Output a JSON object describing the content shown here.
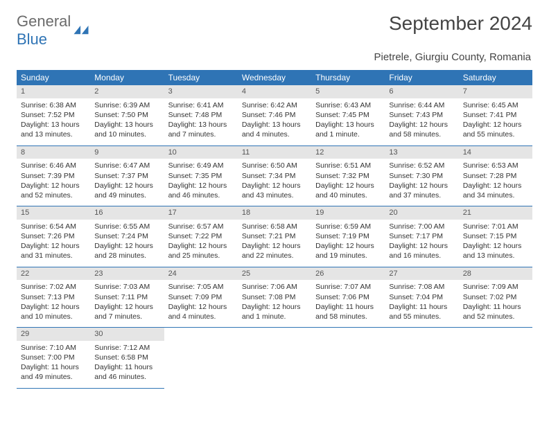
{
  "brand": {
    "word1": "General",
    "word2": "Blue"
  },
  "title": "September 2024",
  "location": "Pietrele, Giurgiu County, Romania",
  "colors": {
    "header_bg": "#2f74b5",
    "header_text": "#ffffff",
    "daynum_bg": "#e5e5e5",
    "row_border": "#2f74b5",
    "body_text": "#333333",
    "logo_gray": "#6b6b6b",
    "logo_blue": "#2f74b5"
  },
  "day_labels": [
    "Sunday",
    "Monday",
    "Tuesday",
    "Wednesday",
    "Thursday",
    "Friday",
    "Saturday"
  ],
  "days": [
    {
      "n": "1",
      "sr": "6:38 AM",
      "ss": "7:52 PM",
      "dl": "13 hours and 13 minutes."
    },
    {
      "n": "2",
      "sr": "6:39 AM",
      "ss": "7:50 PM",
      "dl": "13 hours and 10 minutes."
    },
    {
      "n": "3",
      "sr": "6:41 AM",
      "ss": "7:48 PM",
      "dl": "13 hours and 7 minutes."
    },
    {
      "n": "4",
      "sr": "6:42 AM",
      "ss": "7:46 PM",
      "dl": "13 hours and 4 minutes."
    },
    {
      "n": "5",
      "sr": "6:43 AM",
      "ss": "7:45 PM",
      "dl": "13 hours and 1 minute."
    },
    {
      "n": "6",
      "sr": "6:44 AM",
      "ss": "7:43 PM",
      "dl": "12 hours and 58 minutes."
    },
    {
      "n": "7",
      "sr": "6:45 AM",
      "ss": "7:41 PM",
      "dl": "12 hours and 55 minutes."
    },
    {
      "n": "8",
      "sr": "6:46 AM",
      "ss": "7:39 PM",
      "dl": "12 hours and 52 minutes."
    },
    {
      "n": "9",
      "sr": "6:47 AM",
      "ss": "7:37 PM",
      "dl": "12 hours and 49 minutes."
    },
    {
      "n": "10",
      "sr": "6:49 AM",
      "ss": "7:35 PM",
      "dl": "12 hours and 46 minutes."
    },
    {
      "n": "11",
      "sr": "6:50 AM",
      "ss": "7:34 PM",
      "dl": "12 hours and 43 minutes."
    },
    {
      "n": "12",
      "sr": "6:51 AM",
      "ss": "7:32 PM",
      "dl": "12 hours and 40 minutes."
    },
    {
      "n": "13",
      "sr": "6:52 AM",
      "ss": "7:30 PM",
      "dl": "12 hours and 37 minutes."
    },
    {
      "n": "14",
      "sr": "6:53 AM",
      "ss": "7:28 PM",
      "dl": "12 hours and 34 minutes."
    },
    {
      "n": "15",
      "sr": "6:54 AM",
      "ss": "7:26 PM",
      "dl": "12 hours and 31 minutes."
    },
    {
      "n": "16",
      "sr": "6:55 AM",
      "ss": "7:24 PM",
      "dl": "12 hours and 28 minutes."
    },
    {
      "n": "17",
      "sr": "6:57 AM",
      "ss": "7:22 PM",
      "dl": "12 hours and 25 minutes."
    },
    {
      "n": "18",
      "sr": "6:58 AM",
      "ss": "7:21 PM",
      "dl": "12 hours and 22 minutes."
    },
    {
      "n": "19",
      "sr": "6:59 AM",
      "ss": "7:19 PM",
      "dl": "12 hours and 19 minutes."
    },
    {
      "n": "20",
      "sr": "7:00 AM",
      "ss": "7:17 PM",
      "dl": "12 hours and 16 minutes."
    },
    {
      "n": "21",
      "sr": "7:01 AM",
      "ss": "7:15 PM",
      "dl": "12 hours and 13 minutes."
    },
    {
      "n": "22",
      "sr": "7:02 AM",
      "ss": "7:13 PM",
      "dl": "12 hours and 10 minutes."
    },
    {
      "n": "23",
      "sr": "7:03 AM",
      "ss": "7:11 PM",
      "dl": "12 hours and 7 minutes."
    },
    {
      "n": "24",
      "sr": "7:05 AM",
      "ss": "7:09 PM",
      "dl": "12 hours and 4 minutes."
    },
    {
      "n": "25",
      "sr": "7:06 AM",
      "ss": "7:08 PM",
      "dl": "12 hours and 1 minute."
    },
    {
      "n": "26",
      "sr": "7:07 AM",
      "ss": "7:06 PM",
      "dl": "11 hours and 58 minutes."
    },
    {
      "n": "27",
      "sr": "7:08 AM",
      "ss": "7:04 PM",
      "dl": "11 hours and 55 minutes."
    },
    {
      "n": "28",
      "sr": "7:09 AM",
      "ss": "7:02 PM",
      "dl": "11 hours and 52 minutes."
    },
    {
      "n": "29",
      "sr": "7:10 AM",
      "ss": "7:00 PM",
      "dl": "11 hours and 49 minutes."
    },
    {
      "n": "30",
      "sr": "7:12 AM",
      "ss": "6:58 PM",
      "dl": "11 hours and 46 minutes."
    }
  ],
  "label_sunrise": "Sunrise: ",
  "label_sunset": "Sunset: ",
  "label_daylight": "Daylight: "
}
